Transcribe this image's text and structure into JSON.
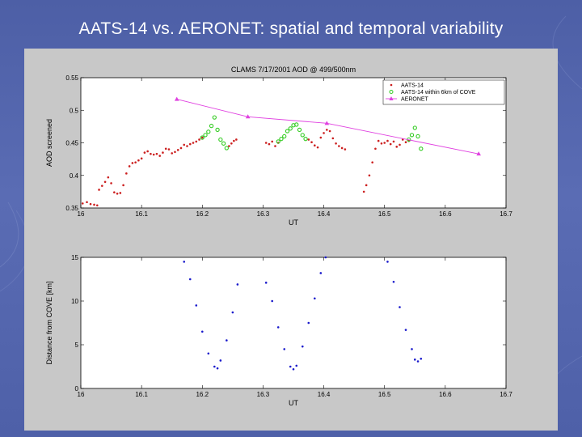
{
  "slide": {
    "title": "AATS-14 vs. AERONET: spatial and temporal variability"
  },
  "colors": {
    "aats14": "#cc1f1f",
    "aats14_near_cove": "#33cc22",
    "aeronet": "#e040e0",
    "distance": "#1a1acc",
    "panel_bg": "#c8c8c8"
  },
  "chart_data": [
    {
      "type": "scatter",
      "title": "CLAMS  7/17/2001  AOD @ 499/500nm",
      "xlabel": "UT",
      "ylabel": "AOD screened",
      "xlim": [
        16,
        16.7
      ],
      "ylim": [
        0.35,
        0.55
      ],
      "xticks": [
        "16",
        "16.1",
        "16.2",
        "16.3",
        "16.4",
        "16.5",
        "16.6",
        "16.7"
      ],
      "yticks": [
        "0.35",
        "0.4",
        "0.45",
        "0.5",
        "0.55"
      ],
      "legend_position": "top-right",
      "grid": false,
      "series": [
        {
          "name": "AATS-14",
          "style": "dots",
          "segments": [
            {
              "x": [
                16.003,
                16.01,
                16.016,
                16.022,
                16.027
              ],
              "y": [
                0.357,
                0.359,
                0.356,
                0.355,
                0.354
              ]
            },
            {
              "x": [
                16.03,
                16.035,
                16.04,
                16.045,
                16.05,
                16.055,
                16.06,
                16.065,
                16.07,
                16.075,
                16.08,
                16.085,
                16.09,
                16.095,
                16.1,
                16.105,
                16.11,
                16.115,
                16.12,
                16.125,
                16.13,
                16.135,
                16.14,
                16.145,
                16.15,
                16.155,
                16.16,
                16.165,
                16.17,
                16.175,
                16.18,
                16.185,
                16.19,
                16.195,
                16.2
              ],
              "y": [
                0.378,
                0.384,
                0.39,
                0.397,
                0.388,
                0.374,
                0.372,
                0.373,
                0.385,
                0.403,
                0.414,
                0.419,
                0.42,
                0.423,
                0.426,
                0.435,
                0.437,
                0.433,
                0.432,
                0.433,
                0.43,
                0.435,
                0.441,
                0.44,
                0.434,
                0.436,
                0.439,
                0.442,
                0.447,
                0.445,
                0.448,
                0.45,
                0.452,
                0.455,
                0.458
              ]
            },
            {
              "x": [
                16.244,
                16.248,
                16.252,
                16.256
              ],
              "y": [
                0.445,
                0.449,
                0.453,
                0.455
              ]
            },
            {
              "x": [
                16.305,
                16.31,
                16.315,
                16.32,
                16.325
              ],
              "y": [
                0.45,
                0.448,
                0.452,
                0.445,
                0.45
              ]
            },
            {
              "x": [
                16.375,
                16.38,
                16.385,
                16.39,
                16.395,
                16.4,
                16.405,
                16.41,
                16.415,
                16.42,
                16.425,
                16.43,
                16.435
              ],
              "y": [
                0.455,
                0.451,
                0.446,
                0.443,
                0.458,
                0.465,
                0.47,
                0.468,
                0.457,
                0.449,
                0.445,
                0.442,
                0.44
              ]
            },
            {
              "x": [
                16.466,
                16.47,
                16.475,
                16.48,
                16.485,
                16.49,
                16.495,
                16.5,
                16.505,
                16.51,
                16.515,
                16.52,
                16.525,
                16.53,
                16.535,
                16.54
              ],
              "y": [
                0.375,
                0.385,
                0.4,
                0.42,
                0.441,
                0.453,
                0.449,
                0.45,
                0.453,
                0.448,
                0.452,
                0.444,
                0.447,
                0.455,
                0.451,
                0.453
              ]
            }
          ]
        },
        {
          "name": "AATS-14 within 6km of COVE",
          "style": "circles",
          "segments": [
            {
              "x": [
                16.2,
                16.205,
                16.21,
                16.215,
                16.22,
                16.225,
                16.23,
                16.235,
                16.24
              ],
              "y": [
                0.458,
                0.462,
                0.467,
                0.476,
                0.489,
                0.47,
                0.455,
                0.449,
                0.442
              ]
            },
            {
              "x": [
                16.325,
                16.33,
                16.335,
                16.34,
                16.345,
                16.35,
                16.355,
                16.36,
                16.365,
                16.37
              ],
              "y": [
                0.452,
                0.456,
                0.46,
                0.468,
                0.472,
                0.477,
                0.478,
                0.47,
                0.462,
                0.456
              ]
            },
            {
              "x": [
                16.54,
                16.545,
                16.55,
                16.555,
                16.56
              ],
              "y": [
                0.455,
                0.462,
                0.473,
                0.46,
                0.441
              ]
            }
          ]
        },
        {
          "name": "AERONET",
          "style": "line-triangles",
          "x": [
            16.158,
            16.275,
            16.405,
            16.655
          ],
          "y": [
            0.517,
            0.49,
            0.48,
            0.433
          ]
        }
      ]
    },
    {
      "type": "scatter",
      "title": "",
      "xlabel": "UT",
      "ylabel": "Distance from COVE [km]",
      "xlim": [
        16,
        16.7
      ],
      "ylim": [
        0,
        15
      ],
      "xticks": [
        "16",
        "16.1",
        "16.2",
        "16.3",
        "16.4",
        "16.5",
        "16.6",
        "16.7"
      ],
      "yticks": [
        "0",
        "5",
        "10",
        "15"
      ],
      "grid": false,
      "series": [
        {
          "name": "",
          "style": "dots",
          "segments": [
            {
              "x": [
                16.17,
                16.18,
                16.19,
                16.2,
                16.21,
                16.22,
                16.225,
                16.23,
                16.24,
                16.25,
                16.258
              ],
              "y": [
                14.5,
                12.5,
                9.5,
                6.5,
                4.0,
                2.5,
                2.3,
                3.2,
                5.5,
                8.7,
                11.9
              ]
            },
            {
              "x": [
                16.305,
                16.315,
                16.325,
                16.335,
                16.345,
                16.35,
                16.355,
                16.365,
                16.375,
                16.385,
                16.395,
                16.403
              ],
              "y": [
                12.1,
                10.0,
                7.0,
                4.5,
                2.5,
                2.2,
                2.6,
                4.8,
                7.5,
                10.3,
                13.2,
                15.0
              ]
            },
            {
              "x": [
                16.505,
                16.515,
                16.525,
                16.535,
                16.545,
                16.55,
                16.555,
                16.56
              ],
              "y": [
                14.5,
                12.2,
                9.3,
                6.7,
                4.5,
                3.3,
                3.1,
                3.4
              ]
            }
          ]
        }
      ]
    }
  ]
}
